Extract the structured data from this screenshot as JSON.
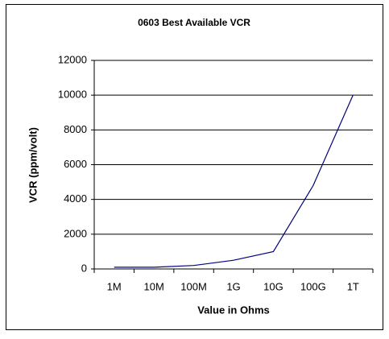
{
  "chart_data": {
    "type": "line",
    "title": "0603 Best Available VCR",
    "x_label": "Value in Ohms",
    "y_label": "VCR (ppm/volt)",
    "categories": [
      "1M",
      "10M",
      "100M",
      "1G",
      "10G",
      "100G",
      "1T"
    ],
    "series": [
      {
        "name": "VCR",
        "color": "#000080",
        "values": [
          100,
          100,
          200,
          500,
          1000,
          4800,
          10000
        ]
      }
    ],
    "ylim": [
      0,
      12000
    ],
    "yticks": [
      0,
      2000,
      4000,
      6000,
      8000,
      10000,
      12000
    ],
    "grid": true
  }
}
